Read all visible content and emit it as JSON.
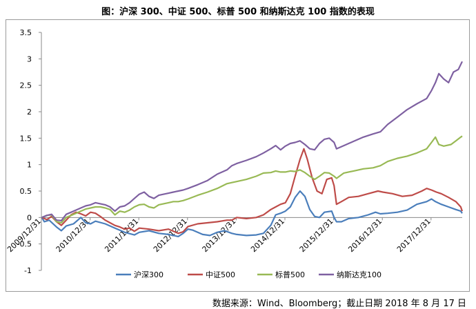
{
  "title": "图：沪深 300、中证 500、标普 500 和纳斯达克 100 指数的表现",
  "source": "数据来源：Wind、Bloomberg；截止日期 2018 年 8 月 17 日",
  "chart_data": {
    "type": "line",
    "title": "图：沪深 300、中证 500、标普 500 和纳斯达克 100 指数的表现",
    "xlabel": "",
    "ylabel": "",
    "ylim": [
      -1,
      3.5
    ],
    "yticks": [
      "3.5",
      "3",
      "2.5",
      "2",
      "1.5",
      "1",
      "0.5",
      "0",
      "-0.5",
      "-1"
    ],
    "xlim": [
      2009.99,
      2018.63
    ],
    "xticks": [
      {
        "x": 2009.99,
        "label": "2009/12/31"
      },
      {
        "x": 2010.99,
        "label": "2010/12/31"
      },
      {
        "x": 2011.99,
        "label": "2011/12/31"
      },
      {
        "x": 2012.99,
        "label": "2012/12/31"
      },
      {
        "x": 2013.99,
        "label": "2013/12/31"
      },
      {
        "x": 2014.99,
        "label": "2014/12/31"
      },
      {
        "x": 2015.99,
        "label": "2015/12/31"
      },
      {
        "x": 2016.99,
        "label": "2016/12/31"
      },
      {
        "x": 2017.99,
        "label": "2017/12/31"
      }
    ],
    "grid": false,
    "legend_position": "bottom",
    "series": [
      {
        "name": "沪深300",
        "color": "#4a7ebb",
        "points": [
          [
            2010.0,
            0.0
          ],
          [
            2010.05,
            -0.08
          ],
          [
            2010.15,
            -0.05
          ],
          [
            2010.3,
            -0.18
          ],
          [
            2010.4,
            -0.25
          ],
          [
            2010.5,
            -0.16
          ],
          [
            2010.65,
            -0.12
          ],
          [
            2010.8,
            0.0
          ],
          [
            2010.9,
            -0.1
          ],
          [
            2011.0,
            -0.12
          ],
          [
            2011.1,
            -0.07
          ],
          [
            2011.3,
            -0.12
          ],
          [
            2011.5,
            -0.2
          ],
          [
            2011.7,
            -0.28
          ],
          [
            2011.9,
            -0.33
          ],
          [
            2012.0,
            -0.28
          ],
          [
            2012.2,
            -0.25
          ],
          [
            2012.4,
            -0.3
          ],
          [
            2012.6,
            -0.32
          ],
          [
            2012.8,
            -0.36
          ],
          [
            2012.9,
            -0.3
          ],
          [
            2013.0,
            -0.22
          ],
          [
            2013.1,
            -0.24
          ],
          [
            2013.3,
            -0.32
          ],
          [
            2013.45,
            -0.34
          ],
          [
            2013.6,
            -0.28
          ],
          [
            2013.75,
            -0.25
          ],
          [
            2013.9,
            -0.3
          ],
          [
            2014.0,
            -0.32
          ],
          [
            2014.2,
            -0.34
          ],
          [
            2014.4,
            -0.33
          ],
          [
            2014.55,
            -0.3
          ],
          [
            2014.7,
            -0.15
          ],
          [
            2014.8,
            0.05
          ],
          [
            2014.9,
            0.08
          ],
          [
            2015.0,
            0.12
          ],
          [
            2015.1,
            0.2
          ],
          [
            2015.2,
            0.38
          ],
          [
            2015.3,
            0.5
          ],
          [
            2015.4,
            0.4
          ],
          [
            2015.5,
            0.15
          ],
          [
            2015.6,
            0.02
          ],
          [
            2015.7,
            0.0
          ],
          [
            2015.8,
            0.1
          ],
          [
            2015.95,
            0.12
          ],
          [
            2016.0,
            0.0
          ],
          [
            2016.05,
            -0.08
          ],
          [
            2016.15,
            -0.08
          ],
          [
            2016.3,
            -0.02
          ],
          [
            2016.5,
            0.0
          ],
          [
            2016.7,
            0.05
          ],
          [
            2016.85,
            0.1
          ],
          [
            2016.95,
            0.07
          ],
          [
            2017.1,
            0.08
          ],
          [
            2017.3,
            0.1
          ],
          [
            2017.5,
            0.14
          ],
          [
            2017.7,
            0.25
          ],
          [
            2017.9,
            0.3
          ],
          [
            2018.0,
            0.35
          ],
          [
            2018.08,
            0.3
          ],
          [
            2018.2,
            0.25
          ],
          [
            2018.35,
            0.2
          ],
          [
            2018.5,
            0.15
          ],
          [
            2018.6,
            0.12
          ],
          [
            2018.63,
            0.08
          ]
        ]
      },
      {
        "name": "中证500",
        "color": "#be4b48",
        "points": [
          [
            2010.0,
            0.0
          ],
          [
            2010.1,
            -0.04
          ],
          [
            2010.2,
            0.02
          ],
          [
            2010.3,
            -0.08
          ],
          [
            2010.4,
            -0.15
          ],
          [
            2010.5,
            -0.05
          ],
          [
            2010.6,
            0.05
          ],
          [
            2010.7,
            0.1
          ],
          [
            2010.8,
            0.07
          ],
          [
            2010.9,
            0.03
          ],
          [
            2011.0,
            0.1
          ],
          [
            2011.1,
            0.08
          ],
          [
            2011.2,
            0.02
          ],
          [
            2011.3,
            -0.05
          ],
          [
            2011.4,
            -0.1
          ],
          [
            2011.5,
            -0.15
          ],
          [
            2011.6,
            -0.18
          ],
          [
            2011.7,
            -0.22
          ],
          [
            2011.8,
            -0.2
          ],
          [
            2011.9,
            -0.26
          ],
          [
            2012.0,
            -0.2
          ],
          [
            2012.2,
            -0.22
          ],
          [
            2012.4,
            -0.25
          ],
          [
            2012.6,
            -0.22
          ],
          [
            2012.8,
            -0.3
          ],
          [
            2012.9,
            -0.27
          ],
          [
            2013.0,
            -0.17
          ],
          [
            2013.2,
            -0.12
          ],
          [
            2013.4,
            -0.1
          ],
          [
            2013.6,
            -0.08
          ],
          [
            2013.8,
            -0.05
          ],
          [
            2013.9,
            -0.05
          ],
          [
            2014.0,
            0.0
          ],
          [
            2014.2,
            -0.02
          ],
          [
            2014.4,
            0.0
          ],
          [
            2014.55,
            0.05
          ],
          [
            2014.7,
            0.15
          ],
          [
            2014.8,
            0.2
          ],
          [
            2014.9,
            0.25
          ],
          [
            2015.0,
            0.28
          ],
          [
            2015.1,
            0.45
          ],
          [
            2015.2,
            0.78
          ],
          [
            2015.3,
            1.1
          ],
          [
            2015.38,
            1.3
          ],
          [
            2015.45,
            1.1
          ],
          [
            2015.55,
            0.75
          ],
          [
            2015.65,
            0.5
          ],
          [
            2015.75,
            0.45
          ],
          [
            2015.85,
            0.72
          ],
          [
            2015.95,
            0.75
          ],
          [
            2016.0,
            0.6
          ],
          [
            2016.05,
            0.25
          ],
          [
            2016.15,
            0.3
          ],
          [
            2016.3,
            0.38
          ],
          [
            2016.5,
            0.4
          ],
          [
            2016.7,
            0.45
          ],
          [
            2016.9,
            0.5
          ],
          [
            2017.0,
            0.48
          ],
          [
            2017.2,
            0.45
          ],
          [
            2017.4,
            0.4
          ],
          [
            2017.6,
            0.42
          ],
          [
            2017.8,
            0.5
          ],
          [
            2017.9,
            0.55
          ],
          [
            2018.0,
            0.52
          ],
          [
            2018.1,
            0.48
          ],
          [
            2018.2,
            0.45
          ],
          [
            2018.35,
            0.38
          ],
          [
            2018.5,
            0.3
          ],
          [
            2018.6,
            0.2
          ],
          [
            2018.63,
            0.12
          ]
        ]
      },
      {
        "name": "标普500",
        "color": "#98b954",
        "points": [
          [
            2010.0,
            0.0
          ],
          [
            2010.1,
            0.04
          ],
          [
            2010.2,
            0.05
          ],
          [
            2010.3,
            -0.08
          ],
          [
            2010.4,
            -0.1
          ],
          [
            2010.5,
            0.0
          ],
          [
            2010.6,
            0.04
          ],
          [
            2010.7,
            0.08
          ],
          [
            2010.8,
            0.12
          ],
          [
            2010.9,
            0.16
          ],
          [
            2011.0,
            0.18
          ],
          [
            2011.1,
            0.2
          ],
          [
            2011.2,
            0.2
          ],
          [
            2011.3,
            0.18
          ],
          [
            2011.4,
            0.15
          ],
          [
            2011.5,
            0.05
          ],
          [
            2011.6,
            0.12
          ],
          [
            2011.7,
            0.1
          ],
          [
            2011.8,
            0.14
          ],
          [
            2011.9,
            0.2
          ],
          [
            2012.0,
            0.24
          ],
          [
            2012.1,
            0.25
          ],
          [
            2012.2,
            0.2
          ],
          [
            2012.3,
            0.18
          ],
          [
            2012.4,
            0.24
          ],
          [
            2012.5,
            0.26
          ],
          [
            2012.6,
            0.28
          ],
          [
            2012.7,
            0.3
          ],
          [
            2012.8,
            0.3
          ],
          [
            2012.9,
            0.32
          ],
          [
            2013.0,
            0.35
          ],
          [
            2013.2,
            0.42
          ],
          [
            2013.4,
            0.48
          ],
          [
            2013.6,
            0.55
          ],
          [
            2013.8,
            0.64
          ],
          [
            2013.9,
            0.66
          ],
          [
            2014.0,
            0.68
          ],
          [
            2014.2,
            0.72
          ],
          [
            2014.4,
            0.78
          ],
          [
            2014.55,
            0.84
          ],
          [
            2014.7,
            0.85
          ],
          [
            2014.8,
            0.88
          ],
          [
            2014.9,
            0.86
          ],
          [
            2015.0,
            0.86
          ],
          [
            2015.1,
            0.88
          ],
          [
            2015.2,
            0.87
          ],
          [
            2015.3,
            0.9
          ],
          [
            2015.4,
            0.85
          ],
          [
            2015.5,
            0.78
          ],
          [
            2015.6,
            0.72
          ],
          [
            2015.7,
            0.78
          ],
          [
            2015.8,
            0.85
          ],
          [
            2015.9,
            0.84
          ],
          [
            2016.0,
            0.78
          ],
          [
            2016.05,
            0.74
          ],
          [
            2016.2,
            0.84
          ],
          [
            2016.4,
            0.88
          ],
          [
            2016.6,
            0.92
          ],
          [
            2016.8,
            0.94
          ],
          [
            2016.95,
            0.98
          ],
          [
            2017.1,
            1.06
          ],
          [
            2017.3,
            1.12
          ],
          [
            2017.5,
            1.16
          ],
          [
            2017.7,
            1.22
          ],
          [
            2017.9,
            1.3
          ],
          [
            2018.0,
            1.42
          ],
          [
            2018.08,
            1.52
          ],
          [
            2018.15,
            1.38
          ],
          [
            2018.25,
            1.35
          ],
          [
            2018.4,
            1.38
          ],
          [
            2018.5,
            1.45
          ],
          [
            2018.6,
            1.52
          ],
          [
            2018.63,
            1.54
          ]
        ]
      },
      {
        "name": "纳斯达克100",
        "color": "#7e60a1",
        "points": [
          [
            2010.0,
            0.0
          ],
          [
            2010.1,
            0.04
          ],
          [
            2010.2,
            0.06
          ],
          [
            2010.3,
            -0.05
          ],
          [
            2010.4,
            -0.06
          ],
          [
            2010.5,
            0.06
          ],
          [
            2010.6,
            0.1
          ],
          [
            2010.7,
            0.14
          ],
          [
            2010.8,
            0.18
          ],
          [
            2010.9,
            0.22
          ],
          [
            2011.0,
            0.24
          ],
          [
            2011.1,
            0.28
          ],
          [
            2011.2,
            0.26
          ],
          [
            2011.3,
            0.24
          ],
          [
            2011.4,
            0.2
          ],
          [
            2011.5,
            0.12
          ],
          [
            2011.6,
            0.2
          ],
          [
            2011.7,
            0.22
          ],
          [
            2011.8,
            0.28
          ],
          [
            2011.9,
            0.36
          ],
          [
            2012.0,
            0.44
          ],
          [
            2012.1,
            0.48
          ],
          [
            2012.2,
            0.4
          ],
          [
            2012.3,
            0.36
          ],
          [
            2012.4,
            0.42
          ],
          [
            2012.5,
            0.44
          ],
          [
            2012.6,
            0.46
          ],
          [
            2012.7,
            0.48
          ],
          [
            2012.8,
            0.5
          ],
          [
            2012.9,
            0.52
          ],
          [
            2013.0,
            0.55
          ],
          [
            2013.2,
            0.62
          ],
          [
            2013.4,
            0.7
          ],
          [
            2013.6,
            0.82
          ],
          [
            2013.8,
            0.9
          ],
          [
            2013.9,
            0.98
          ],
          [
            2014.0,
            1.02
          ],
          [
            2014.2,
            1.08
          ],
          [
            2014.4,
            1.15
          ],
          [
            2014.55,
            1.22
          ],
          [
            2014.7,
            1.3
          ],
          [
            2014.8,
            1.36
          ],
          [
            2014.9,
            1.28
          ],
          [
            2015.0,
            1.35
          ],
          [
            2015.1,
            1.4
          ],
          [
            2015.2,
            1.42
          ],
          [
            2015.3,
            1.45
          ],
          [
            2015.4,
            1.38
          ],
          [
            2015.5,
            1.3
          ],
          [
            2015.6,
            1.28
          ],
          [
            2015.7,
            1.4
          ],
          [
            2015.8,
            1.48
          ],
          [
            2015.9,
            1.5
          ],
          [
            2016.0,
            1.42
          ],
          [
            2016.05,
            1.3
          ],
          [
            2016.2,
            1.36
          ],
          [
            2016.4,
            1.44
          ],
          [
            2016.6,
            1.52
          ],
          [
            2016.8,
            1.58
          ],
          [
            2016.95,
            1.62
          ],
          [
            2017.1,
            1.76
          ],
          [
            2017.3,
            1.9
          ],
          [
            2017.5,
            2.04
          ],
          [
            2017.7,
            2.15
          ],
          [
            2017.9,
            2.25
          ],
          [
            2018.0,
            2.4
          ],
          [
            2018.08,
            2.55
          ],
          [
            2018.15,
            2.72
          ],
          [
            2018.25,
            2.62
          ],
          [
            2018.35,
            2.55
          ],
          [
            2018.45,
            2.75
          ],
          [
            2018.55,
            2.8
          ],
          [
            2018.63,
            2.95
          ]
        ]
      }
    ]
  }
}
